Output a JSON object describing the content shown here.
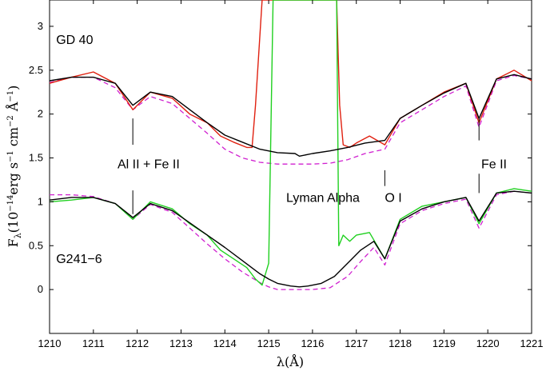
{
  "chart_data": {
    "type": "line",
    "title": "",
    "xlabel": "λ(Å)",
    "ylabel_main": "F",
    "ylabel_sub": "λ",
    "ylabel_rest": "(10",
    "ylabel_exp1": "−14",
    "ylabel_unit1": "erg s",
    "ylabel_exp2": "−1",
    "ylabel_unit2": " cm",
    "ylabel_exp3": "−2",
    "ylabel_unit3": " Å",
    "ylabel_exp4": "−1",
    "ylabel_close": ")",
    "xlim": [
      1210,
      1221
    ],
    "ylim": [
      -0.5,
      3.3
    ],
    "grid": false,
    "legend": "none",
    "xticks": [
      1210,
      1211,
      1212,
      1213,
      1214,
      1215,
      1216,
      1217,
      1218,
      1219,
      1220,
      1221
    ],
    "yticks": [
      0,
      0.5,
      1,
      1.5,
      2,
      2.5,
      3
    ],
    "annotations": [
      {
        "text": "GD 40",
        "x": 1210.15,
        "y": 2.8
      },
      {
        "text": "G241−6",
        "x": 1210.15,
        "y": 0.3
      },
      {
        "text": "Al II + Fe II",
        "x": 1211.55,
        "y": 1.38
      },
      {
        "text": "Lyman Alpha",
        "x": 1215.4,
        "y": 1.0
      },
      {
        "text": "O I",
        "x": 1217.65,
        "y": 1.0
      },
      {
        "text": "Fe II",
        "x": 1219.85,
        "y": 1.38
      }
    ],
    "line_markers": [
      {
        "x": 1211.9,
        "segments": [
          [
            1.65,
            1.95
          ],
          [
            0.86,
            1.13
          ]
        ]
      },
      {
        "x": 1217.65,
        "segments": [
          [
            1.18,
            1.36
          ]
        ]
      },
      {
        "x": 1219.8,
        "segments": [
          [
            1.7,
            1.95
          ],
          [
            1.1,
            1.32
          ]
        ]
      }
    ],
    "series": [
      {
        "id": "gd40_observed",
        "color": "#e02010",
        "stroke": "solid",
        "x": [
          1210.0,
          1210.5,
          1211.0,
          1211.5,
          1211.9,
          1212.3,
          1212.8,
          1213.2,
          1213.6,
          1213.9,
          1214.2,
          1214.5,
          1214.62,
          1214.7,
          1214.85,
          1215.0,
          1216.5,
          1216.55,
          1216.62,
          1216.7,
          1216.85,
          1217.0,
          1217.3,
          1217.65,
          1218.0,
          1218.5,
          1219.0,
          1219.5,
          1219.8,
          1220.2,
          1220.6,
          1221.0
        ],
        "y": [
          2.35,
          2.42,
          2.48,
          2.35,
          2.05,
          2.25,
          2.18,
          2.0,
          1.9,
          1.75,
          1.68,
          1.62,
          1.62,
          2.1,
          3.4,
          3.4,
          3.4,
          3.4,
          2.1,
          1.65,
          1.62,
          1.67,
          1.75,
          1.65,
          1.95,
          2.1,
          2.25,
          2.35,
          1.9,
          2.4,
          2.5,
          2.38
        ]
      },
      {
        "id": "gd40_model",
        "color": "#000000",
        "stroke": "solid",
        "x": [
          1210.0,
          1210.5,
          1211.0,
          1211.5,
          1211.9,
          1212.3,
          1212.8,
          1213.2,
          1213.6,
          1214.0,
          1214.4,
          1214.8,
          1215.2,
          1215.6,
          1215.7,
          1216.0,
          1216.4,
          1216.8,
          1217.2,
          1217.65,
          1218.0,
          1218.5,
          1219.0,
          1219.5,
          1219.8,
          1220.2,
          1220.6,
          1221.0
        ],
        "y": [
          2.38,
          2.42,
          2.42,
          2.35,
          2.1,
          2.25,
          2.2,
          2.05,
          1.9,
          1.76,
          1.68,
          1.6,
          1.56,
          1.55,
          1.52,
          1.55,
          1.58,
          1.62,
          1.67,
          1.7,
          1.95,
          2.1,
          2.24,
          2.35,
          1.95,
          2.4,
          2.45,
          2.4
        ]
      },
      {
        "id": "gd40_dashed",
        "color": "#d020d0",
        "stroke": "dashed",
        "x": [
          1210.0,
          1210.5,
          1211.0,
          1211.5,
          1211.9,
          1212.3,
          1212.8,
          1213.2,
          1213.6,
          1214.0,
          1214.4,
          1214.8,
          1215.2,
          1215.6,
          1216.0,
          1216.4,
          1216.8,
          1217.2,
          1217.65,
          1218.0,
          1218.5,
          1219.0,
          1219.5,
          1219.8,
          1220.2,
          1220.6,
          1221.0
        ],
        "y": [
          2.36,
          2.42,
          2.42,
          2.3,
          2.05,
          2.2,
          2.12,
          1.95,
          1.78,
          1.6,
          1.5,
          1.45,
          1.43,
          1.43,
          1.43,
          1.44,
          1.48,
          1.55,
          1.6,
          1.9,
          2.05,
          2.2,
          2.32,
          1.85,
          2.38,
          2.44,
          2.4
        ]
      },
      {
        "id": "g241_observed",
        "color": "#20d020",
        "stroke": "solid",
        "x": [
          1210.0,
          1210.5,
          1211.0,
          1211.5,
          1211.9,
          1212.3,
          1212.8,
          1213.2,
          1213.6,
          1213.9,
          1214.2,
          1214.5,
          1214.7,
          1214.85,
          1215.0,
          1215.1,
          1215.2,
          1216.45,
          1216.55,
          1216.6,
          1216.7,
          1216.85,
          1217.0,
          1217.3,
          1217.65,
          1218.0,
          1218.5,
          1219.0,
          1219.5,
          1219.8,
          1220.2,
          1220.6,
          1221.0
        ],
        "y": [
          1.0,
          1.02,
          1.05,
          0.98,
          0.8,
          1.0,
          0.92,
          0.75,
          0.62,
          0.45,
          0.35,
          0.25,
          0.12,
          0.05,
          0.3,
          3.4,
          3.4,
          3.4,
          3.4,
          0.5,
          0.62,
          0.55,
          0.62,
          0.65,
          0.35,
          0.8,
          0.95,
          1.0,
          1.05,
          0.75,
          1.1,
          1.15,
          1.12
        ]
      },
      {
        "id": "g241_model",
        "color": "#000000",
        "stroke": "solid",
        "x": [
          1210.0,
          1210.5,
          1211.0,
          1211.5,
          1211.9,
          1212.3,
          1212.8,
          1213.2,
          1213.6,
          1214.0,
          1214.4,
          1214.8,
          1215.0,
          1215.2,
          1215.5,
          1215.7,
          1215.9,
          1216.2,
          1216.5,
          1216.8,
          1217.1,
          1217.4,
          1217.65,
          1218.0,
          1218.5,
          1219.0,
          1219.5,
          1219.8,
          1220.2,
          1220.6,
          1221.0
        ],
        "y": [
          1.02,
          1.05,
          1.05,
          0.98,
          0.82,
          0.98,
          0.9,
          0.76,
          0.62,
          0.48,
          0.33,
          0.18,
          0.12,
          0.07,
          0.04,
          0.03,
          0.04,
          0.07,
          0.15,
          0.3,
          0.45,
          0.55,
          0.35,
          0.78,
          0.92,
          1.0,
          1.05,
          0.78,
          1.1,
          1.12,
          1.1
        ]
      },
      {
        "id": "g241_dashed",
        "color": "#d020d0",
        "stroke": "dashed",
        "x": [
          1210.0,
          1210.5,
          1211.0,
          1211.5,
          1211.9,
          1212.3,
          1212.8,
          1213.2,
          1213.6,
          1214.0,
          1214.4,
          1214.8,
          1215.0,
          1215.2,
          1215.5,
          1215.7,
          1216.0,
          1216.4,
          1216.8,
          1217.1,
          1217.4,
          1217.65,
          1218.0,
          1218.5,
          1219.0,
          1219.5,
          1219.8,
          1220.2,
          1220.6,
          1221.0
        ],
        "y": [
          1.08,
          1.08,
          1.06,
          0.98,
          0.8,
          0.97,
          0.88,
          0.7,
          0.52,
          0.35,
          0.2,
          0.08,
          0.03,
          0.0,
          0.0,
          0.0,
          0.0,
          0.02,
          0.15,
          0.32,
          0.48,
          0.28,
          0.75,
          0.9,
          0.98,
          1.03,
          0.7,
          1.08,
          1.12,
          1.1
        ]
      }
    ]
  }
}
